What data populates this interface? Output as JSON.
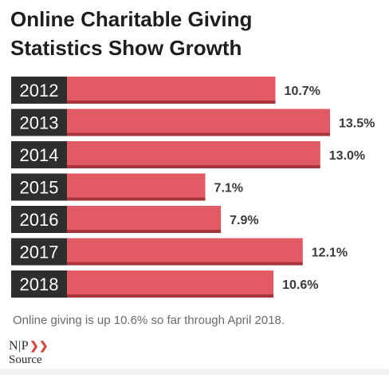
{
  "title": {
    "line1": "Online Charitable Giving",
    "line2": "Statistics Show Growth"
  },
  "chart_data": {
    "type": "bar",
    "orientation": "horizontal",
    "categories": [
      "2012",
      "2013",
      "2014",
      "2015",
      "2016",
      "2017",
      "2018"
    ],
    "values": [
      10.7,
      13.5,
      13.0,
      7.1,
      7.9,
      12.1,
      10.6
    ],
    "data_labels": [
      "10.7%",
      "13.5%",
      "13.0%",
      "7.1%",
      "7.9%",
      "12.1%",
      "10.6%"
    ],
    "unit": "%",
    "xlim": [
      0,
      13.5
    ],
    "grid": false,
    "legend": "none",
    "colors": {
      "bar": "#e25a63",
      "bar_shadow": "#a8353d",
      "category_bg": "#2e2e2e",
      "category_text": "#ffffff",
      "label_text": "#3a3a3a"
    }
  },
  "note": "Online giving is up 10.6% so far through April 2018.",
  "logo": {
    "letters": "N|P",
    "name": "Source"
  }
}
